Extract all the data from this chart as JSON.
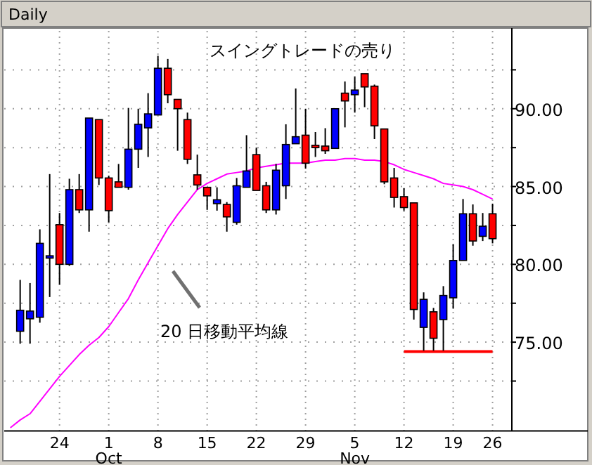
{
  "chart_data": {
    "type": "candlestick",
    "title": "スイングトレードの売り",
    "subtitle": "Daily",
    "categories": [
      null,
      null,
      null,
      null,
      null,
      "24",
      null,
      null,
      null,
      null,
      "1",
      null,
      null,
      null,
      null,
      "8",
      null,
      null,
      null,
      null,
      "15",
      null,
      null,
      null,
      null,
      "22",
      null,
      null,
      null,
      null,
      "29",
      null,
      null,
      null,
      null,
      "5",
      null,
      null,
      null,
      null,
      "12",
      null,
      null,
      null,
      null,
      "19",
      null,
      null,
      null,
      "26"
    ],
    "ohlc": [
      null,
      [
        75.7,
        79.0,
        74.9,
        77.05
      ],
      [
        76.5,
        78.8,
        74.9,
        77.0
      ],
      [
        76.6,
        82.25,
        76.25,
        81.35
      ],
      [
        80.4,
        85.8,
        77.9,
        80.55
      ],
      [
        82.55,
        83.3,
        78.7,
        80.0
      ],
      [
        80.0,
        85.5,
        79.9,
        84.8
      ],
      [
        84.8,
        85.8,
        83.3,
        83.5
      ],
      [
        83.5,
        89.4,
        82.1,
        89.4
      ],
      [
        89.3,
        89.3,
        85.1,
        85.55
      ],
      [
        85.55,
        85.7,
        82.7,
        83.45
      ],
      [
        85.3,
        86.45,
        84.95,
        84.95
      ],
      [
        84.95,
        90.05,
        84.8,
        87.4
      ],
      [
        87.4,
        90.0,
        86.2,
        89.0
      ],
      [
        88.77,
        91.0,
        86.9,
        89.67
      ],
      [
        89.6,
        93.4,
        89.6,
        92.6
      ],
      [
        92.6,
        93.2,
        90.35,
        90.9
      ],
      [
        90.6,
        90.6,
        87.3,
        90.0
      ],
      [
        89.3,
        89.75,
        86.45,
        86.75
      ],
      [
        85.75,
        87.05,
        84.8,
        85.1
      ],
      [
        84.95,
        84.95,
        83.5,
        84.4
      ],
      [
        83.9,
        84.95,
        83.45,
        84.15
      ],
      [
        83.85,
        84.0,
        82.1,
        83.05
      ],
      [
        82.7,
        85.55,
        82.55,
        85.05
      ],
      [
        84.95,
        88.3,
        84.95,
        86.0
      ],
      [
        87.05,
        87.5,
        84.75,
        84.75
      ],
      [
        85.05,
        85.3,
        83.3,
        83.5
      ],
      [
        83.5,
        86.45,
        83.2,
        86.05
      ],
      [
        85.05,
        89.0,
        84.2,
        87.7
      ],
      [
        87.75,
        91.3,
        87.75,
        88.2
      ],
      [
        88.3,
        90.0,
        86.15,
        86.5
      ],
      [
        87.65,
        88.5,
        86.9,
        87.5
      ],
      [
        87.6,
        88.75,
        87.1,
        87.3
      ],
      [
        87.45,
        90.0,
        87.45,
        90.0
      ],
      [
        91.0,
        91.75,
        88.8,
        90.5
      ],
      [
        90.9,
        92.05,
        89.75,
        91.2
      ],
      [
        92.25,
        92.25,
        90.1,
        91.4
      ],
      [
        91.45,
        91.55,
        88.05,
        88.9
      ],
      [
        88.7,
        88.7,
        85.15,
        85.3
      ],
      [
        85.55,
        86.2,
        83.65,
        84.3
      ],
      [
        84.35,
        84.9,
        83.45,
        83.65
      ],
      [
        83.95,
        83.95,
        76.45,
        77.1
      ],
      [
        75.95,
        78.2,
        74.45,
        77.75
      ],
      [
        76.95,
        77.2,
        74.45,
        75.25
      ],
      [
        76.45,
        78.6,
        74.45,
        78.0
      ],
      [
        77.85,
        81.3,
        77.15,
        80.25
      ],
      [
        80.25,
        84.2,
        80.25,
        83.25
      ],
      [
        83.25,
        83.85,
        81.2,
        81.5
      ],
      [
        81.8,
        83.3,
        81.5,
        82.45
      ],
      [
        83.25,
        83.9,
        81.35,
        81.65
      ]
    ],
    "colors": [
      null,
      "#0000ff",
      "#0000ff",
      "#0000ff",
      "#0000ff",
      "#ff0000",
      "#0000ff",
      "#ff0000",
      "#0000ff",
      "#ff0000",
      "#ff0000",
      "#ff0000",
      "#0000ff",
      "#0000ff",
      "#0000ff",
      "#0000ff",
      "#ff0000",
      "#ff0000",
      "#ff0000",
      "#ff0000",
      "#ff0000",
      "#0000ff",
      "#ff0000",
      "#0000ff",
      "#0000ff",
      "#ff0000",
      "#ff0000",
      "#0000ff",
      "#0000ff",
      "#0000ff",
      "#ff0000",
      "#ff0000",
      "#ff0000",
      "#0000ff",
      "#ff0000",
      "#0000ff",
      "#ff0000",
      "#ff0000",
      "#ff0000",
      "#ff0000",
      "#ff0000",
      "#ff0000",
      "#0000ff",
      "#ff0000",
      "#0000ff",
      "#0000ff",
      "#0000ff",
      "#ff0000",
      "#0000ff",
      "#ff0000"
    ],
    "series": [
      {
        "type": "line",
        "color": "#ff00ff",
        "values": [
          69.5,
          70.0,
          70.4,
          71.2,
          72.0,
          72.8,
          73.5,
          74.2,
          74.8,
          75.3,
          76.0,
          76.9,
          77.8,
          79.0,
          80.1,
          81.2,
          82.3,
          83.2,
          84.0,
          84.8,
          85.2,
          85.5,
          85.8,
          85.9,
          86.0,
          86.2,
          86.3,
          86.4,
          86.5,
          86.5,
          86.5,
          86.6,
          86.7,
          86.7,
          86.8,
          86.8,
          86.7,
          86.7,
          86.6,
          86.4,
          86.1,
          85.9,
          85.7,
          85.5,
          85.2,
          85.1,
          85.0,
          84.8,
          84.5,
          84.2
        ]
      },
      {
        "type": "line",
        "color": "#ff0000",
        "values": [
          null,
          null,
          null,
          null,
          null,
          null,
          null,
          null,
          null,
          null,
          null,
          null,
          null,
          null,
          null,
          null,
          null,
          null,
          null,
          null,
          null,
          null,
          null,
          null,
          null,
          null,
          null,
          null,
          null,
          null,
          null,
          null,
          null,
          null,
          null,
          null,
          null,
          null,
          null,
          null,
          74.4,
          74.4,
          74.4,
          74.4,
          74.4,
          74.4,
          74.4,
          74.4,
          74.4,
          74.4
        ]
      }
    ],
    "ylim": [
      69.3,
      95
    ],
    "yticks": [
      {
        "value": 72.5,
        "label": null
      },
      {
        "value": 75,
        "label": "75.00"
      },
      {
        "value": 77.5,
        "label": null
      },
      {
        "value": 80,
        "label": "80.00"
      },
      {
        "value": 82.5,
        "label": null
      },
      {
        "value": 85,
        "label": "85.00"
      },
      {
        "value": 87.5,
        "label": null
      },
      {
        "value": 90,
        "label": "90.00"
      },
      {
        "value": 92.5,
        "label": null
      }
    ],
    "grid": true,
    "annotations": [
      "20 日移動平均線",
      "Oct",
      "Nov"
    ]
  }
}
